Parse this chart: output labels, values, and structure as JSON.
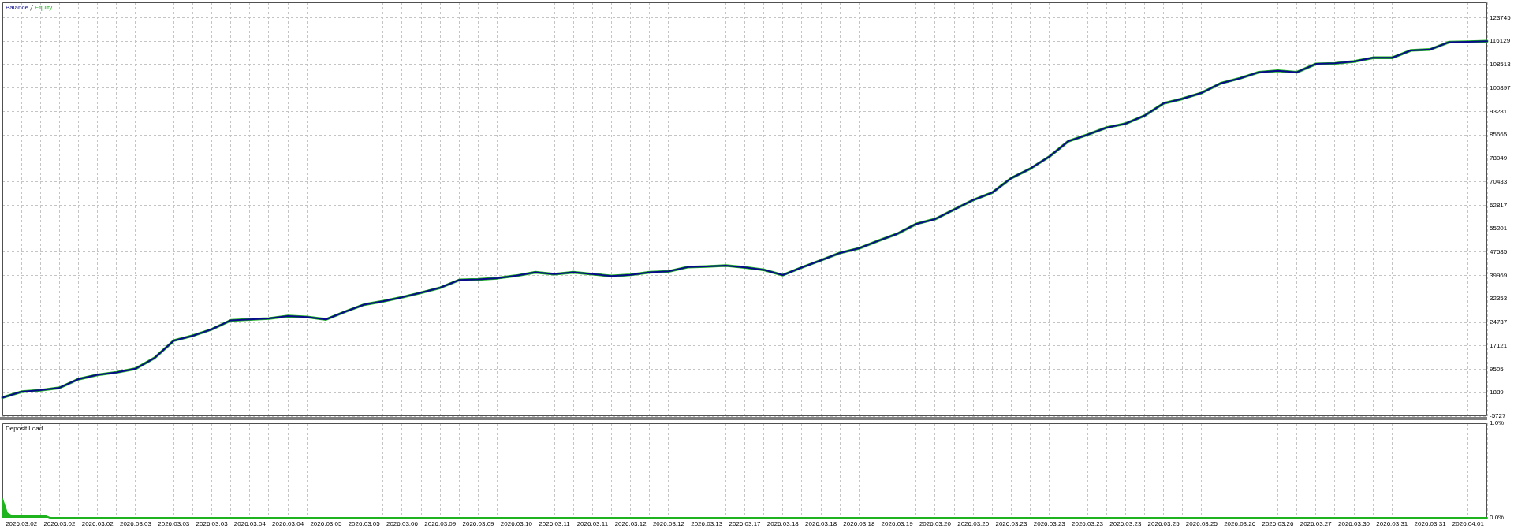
{
  "chart_data": [
    {
      "type": "line",
      "legend": "top left",
      "tick_labels": "y",
      "grid": true,
      "categories": [
        null,
        "2026.03.02",
        null,
        "2026.03.02",
        null,
        "2026.03.02",
        null,
        "2026.03.03",
        null,
        "2026.03.03",
        null,
        "2026.03.03",
        null,
        "2026.03.04",
        null,
        "2026.03.04",
        null,
        "2026.03.05",
        null,
        "2026.03.05",
        null,
        "2026.03.06",
        null,
        "2026.03.09",
        null,
        "2026.03.09",
        null,
        "2026.03.10",
        null,
        "2026.03.11",
        null,
        "2026.03.11",
        null,
        "2026.03.12",
        null,
        "2026.03.12",
        null,
        "2026.03.13",
        null,
        "2026.03.17",
        null,
        "2026.03.18",
        null,
        "2026.03.18",
        null,
        "2026.03.18",
        null,
        "2026.03.19",
        null,
        "2026.03.20",
        null,
        "2026.03.20",
        null,
        "2026.03.23",
        null,
        "2026.03.23",
        null,
        "2026.03.23",
        null,
        "2026.03.23",
        null,
        "2026.03.25",
        null,
        "2026.03.25",
        null,
        "2026.03.26",
        null,
        "2026.03.26",
        null,
        "2026.03.27",
        null,
        "2026.03.30",
        null,
        "2026.03.31",
        null,
        "2026.03.31",
        null,
        "2026.04.01",
        null
      ],
      "series": [
        {
          "name": "Balance",
          "color": "#0a0a8c",
          "values": [
            300,
            2200,
            2700,
            3500,
            6300,
            7700,
            8500,
            9700,
            13200,
            18800,
            20400,
            22500,
            25400,
            25700,
            26000,
            26800,
            26500,
            25700,
            28200,
            30500,
            31600,
            32900,
            34400,
            36000,
            38500,
            38700,
            39100,
            39900,
            41000,
            40400,
            41000,
            40400,
            39800,
            40200,
            41000,
            41300,
            42700,
            42900,
            43200,
            42600,
            41800,
            40100,
            42600,
            44900,
            47300,
            48800,
            51200,
            53500,
            56700,
            58300,
            61400,
            64500,
            66900,
            71600,
            74700,
            78600,
            83600,
            85700,
            88000,
            89300,
            91900,
            95900,
            97400,
            99300,
            102400,
            104000,
            106000,
            106500,
            106000,
            108700,
            108900,
            109500,
            110700,
            110700,
            113100,
            113400,
            115800,
            115900,
            116100
          ]
        },
        {
          "name": "Equity",
          "color": "#1fb41f",
          "values": [
            300,
            2200,
            2700,
            3500,
            6300,
            7700,
            8500,
            9700,
            13200,
            18800,
            20400,
            22500,
            25400,
            25700,
            26000,
            26800,
            26500,
            25700,
            28200,
            30500,
            31600,
            32900,
            34400,
            36000,
            38500,
            38700,
            39100,
            39900,
            41000,
            40400,
            41000,
            40400,
            39800,
            40200,
            41000,
            41300,
            42700,
            42900,
            43200,
            42600,
            41800,
            40100,
            42600,
            44900,
            47300,
            48800,
            51200,
            53500,
            56700,
            58300,
            61400,
            64500,
            66900,
            71600,
            74700,
            78600,
            83600,
            85700,
            88000,
            89300,
            91900,
            95900,
            97400,
            99300,
            102400,
            104000,
            106000,
            106500,
            106000,
            108700,
            108900,
            109500,
            110700,
            110700,
            113100,
            113400,
            115800,
            115900,
            116100
          ]
        }
      ],
      "ylim": [
        -5727,
        128700
      ],
      "yticks": [
        -5727,
        1889,
        9505,
        17121,
        24737,
        32353,
        39969,
        47585,
        55201,
        62817,
        70433,
        78049,
        85665,
        93281,
        100897,
        108513,
        116129,
        123745
      ]
    },
    {
      "type": "area",
      "title": "Deposit Load",
      "grid": "x",
      "color": "#1fb41f",
      "categories": [
        null,
        null,
        null,
        null,
        "2026.03.02",
        null,
        null,
        null,
        null,
        null,
        null,
        null,
        "2026.03.02",
        null,
        null,
        null,
        null,
        null,
        null,
        null,
        "2026.03.02",
        null,
        null,
        null,
        null,
        null,
        null,
        null,
        "2026.03.03",
        null,
        null,
        null,
        null,
        null,
        null,
        null,
        "2026.03.03",
        null,
        null,
        null,
        null,
        null,
        null,
        null,
        "2026.03.03",
        null,
        null,
        null,
        null,
        null,
        null,
        null,
        "2026.03.04",
        null,
        null,
        null,
        null,
        null,
        null,
        null,
        "2026.03.04",
        null,
        null,
        null,
        null,
        null,
        null,
        null,
        "2026.03.05",
        null,
        null,
        null,
        null,
        null,
        null,
        null,
        "2026.03.05",
        null,
        null,
        null,
        null,
        null,
        null,
        null,
        "2026.03.06",
        null,
        null,
        null,
        null,
        null,
        null,
        null,
        "2026.03.09",
        null,
        null,
        null,
        null,
        null,
        null,
        null,
        "2026.03.09",
        null,
        null,
        null,
        null,
        null,
        null,
        null,
        "2026.03.10",
        null,
        null,
        null,
        null,
        null,
        null,
        null,
        "2026.03.11",
        null,
        null,
        null,
        null,
        null,
        null,
        null,
        "2026.03.11",
        null,
        null,
        null,
        null,
        null,
        null,
        null,
        "2026.03.12",
        null,
        null,
        null,
        null,
        null,
        null,
        null,
        "2026.03.12",
        null,
        null,
        null,
        null,
        null,
        null,
        null,
        "2026.03.13",
        null,
        null,
        null,
        null,
        null,
        null,
        null,
        "2026.03.17",
        null,
        null,
        null,
        null,
        null,
        null,
        null,
        "2026.03.18",
        null,
        null,
        null,
        null,
        null,
        null,
        null,
        "2026.03.18",
        null,
        null,
        null,
        null,
        null,
        null,
        null,
        "2026.03.18",
        null,
        null,
        null,
        null,
        null,
        null,
        null,
        "2026.03.19",
        null,
        null,
        null,
        null,
        null,
        null,
        null,
        "2026.03.20",
        null,
        null,
        null,
        null,
        null,
        null,
        null,
        "2026.03.20",
        null,
        null,
        null,
        null,
        null,
        null,
        null,
        "2026.03.23",
        null,
        null,
        null,
        null,
        null,
        null,
        null,
        "2026.03.23",
        null,
        null,
        null,
        null,
        null,
        null,
        null,
        "2026.03.23",
        null,
        null,
        null,
        null,
        null,
        null,
        null,
        "2026.03.23",
        null,
        null,
        null,
        null,
        null,
        null,
        null,
        "2026.03.25",
        null,
        null,
        null,
        null,
        null,
        null,
        null,
        "2026.03.25",
        null,
        null,
        null,
        null,
        null,
        null,
        null,
        "2026.03.26",
        null,
        null,
        null,
        null,
        null,
        null,
        null,
        "2026.03.26",
        null,
        null,
        null,
        null,
        null,
        null,
        null,
        "2026.03.27",
        null,
        null,
        null,
        null,
        null,
        null,
        null,
        "2026.03.30",
        null,
        null,
        null,
        null,
        null,
        null,
        null,
        "2026.03.31",
        null,
        null,
        null,
        null,
        null,
        null,
        null,
        "2026.03.31",
        null,
        null,
        null,
        null,
        null,
        null,
        null,
        "2026.04.01",
        null,
        null,
        null,
        null
      ],
      "values": [
        0.2,
        0.05,
        0.02,
        0.02,
        0.02,
        0.02,
        0.02,
        0.02,
        0.02,
        0.02,
        0,
        0,
        0,
        0,
        0,
        0,
        0,
        0,
        0,
        0,
        0,
        0,
        0,
        0,
        0,
        0,
        0,
        0,
        0,
        0,
        0,
        0,
        0,
        0,
        0,
        0,
        0,
        0,
        0,
        0,
        0,
        0,
        0,
        0,
        0,
        0,
        0,
        0,
        0,
        0,
        0,
        0,
        0,
        0,
        0,
        0,
        0,
        0,
        0,
        0,
        0,
        0,
        0,
        0,
        0,
        0,
        0,
        0,
        0,
        0,
        0,
        0,
        0,
        0,
        0,
        0,
        0,
        0,
        0,
        0,
        0,
        0,
        0,
        0,
        0,
        0,
        0,
        0,
        0,
        0,
        0,
        0,
        0,
        0,
        0,
        0,
        0,
        0,
        0,
        0,
        0,
        0,
        0,
        0,
        0,
        0,
        0,
        0,
        0,
        0,
        0,
        0,
        0,
        0,
        0,
        0,
        0,
        0,
        0,
        0,
        0,
        0,
        0,
        0,
        0,
        0,
        0,
        0,
        0,
        0,
        0,
        0,
        0,
        0,
        0,
        0,
        0,
        0,
        0,
        0,
        0,
        0,
        0,
        0,
        0,
        0,
        0,
        0,
        0,
        0,
        0,
        0,
        0,
        0,
        0,
        0,
        0,
        0,
        0,
        0,
        0,
        0,
        0,
        0,
        0,
        0,
        0,
        0,
        0,
        0,
        0,
        0,
        0,
        0,
        0,
        0,
        0,
        0,
        0,
        0,
        0,
        0,
        0,
        0,
        0,
        0,
        0,
        0,
        0,
        0,
        0,
        0,
        0,
        0,
        0,
        0,
        0,
        0,
        0,
        0,
        0,
        0,
        0,
        0,
        0,
        0,
        0,
        0,
        0,
        0,
        0,
        0,
        0,
        0,
        0,
        0,
        0,
        0,
        0,
        0,
        0,
        0,
        0,
        0,
        0,
        0,
        0,
        0,
        0,
        0,
        0,
        0,
        0,
        0,
        0,
        0,
        0,
        0,
        0,
        0,
        0,
        0,
        0,
        0,
        0,
        0,
        0,
        0,
        0,
        0,
        0,
        0,
        0,
        0,
        0,
        0,
        0,
        0,
        0,
        0,
        0,
        0,
        0,
        0,
        0,
        0,
        0,
        0,
        0,
        0,
        0,
        0,
        0,
        0,
        0,
        0,
        0,
        0,
        0,
        0,
        0,
        0,
        0,
        0,
        0,
        0,
        0,
        0,
        0,
        0,
        0,
        0,
        0,
        0,
        0,
        0,
        0,
        0,
        0,
        0,
        0,
        0,
        0,
        0,
        0,
        0,
        0,
        0,
        0,
        0,
        0,
        0,
        0
      ],
      "ylim": [
        0,
        1
      ],
      "yticks": [
        {
          "value": 1,
          "label": "1.0%"
        },
        {
          "value": 0,
          "label": "0.0%"
        }
      ]
    }
  ]
}
